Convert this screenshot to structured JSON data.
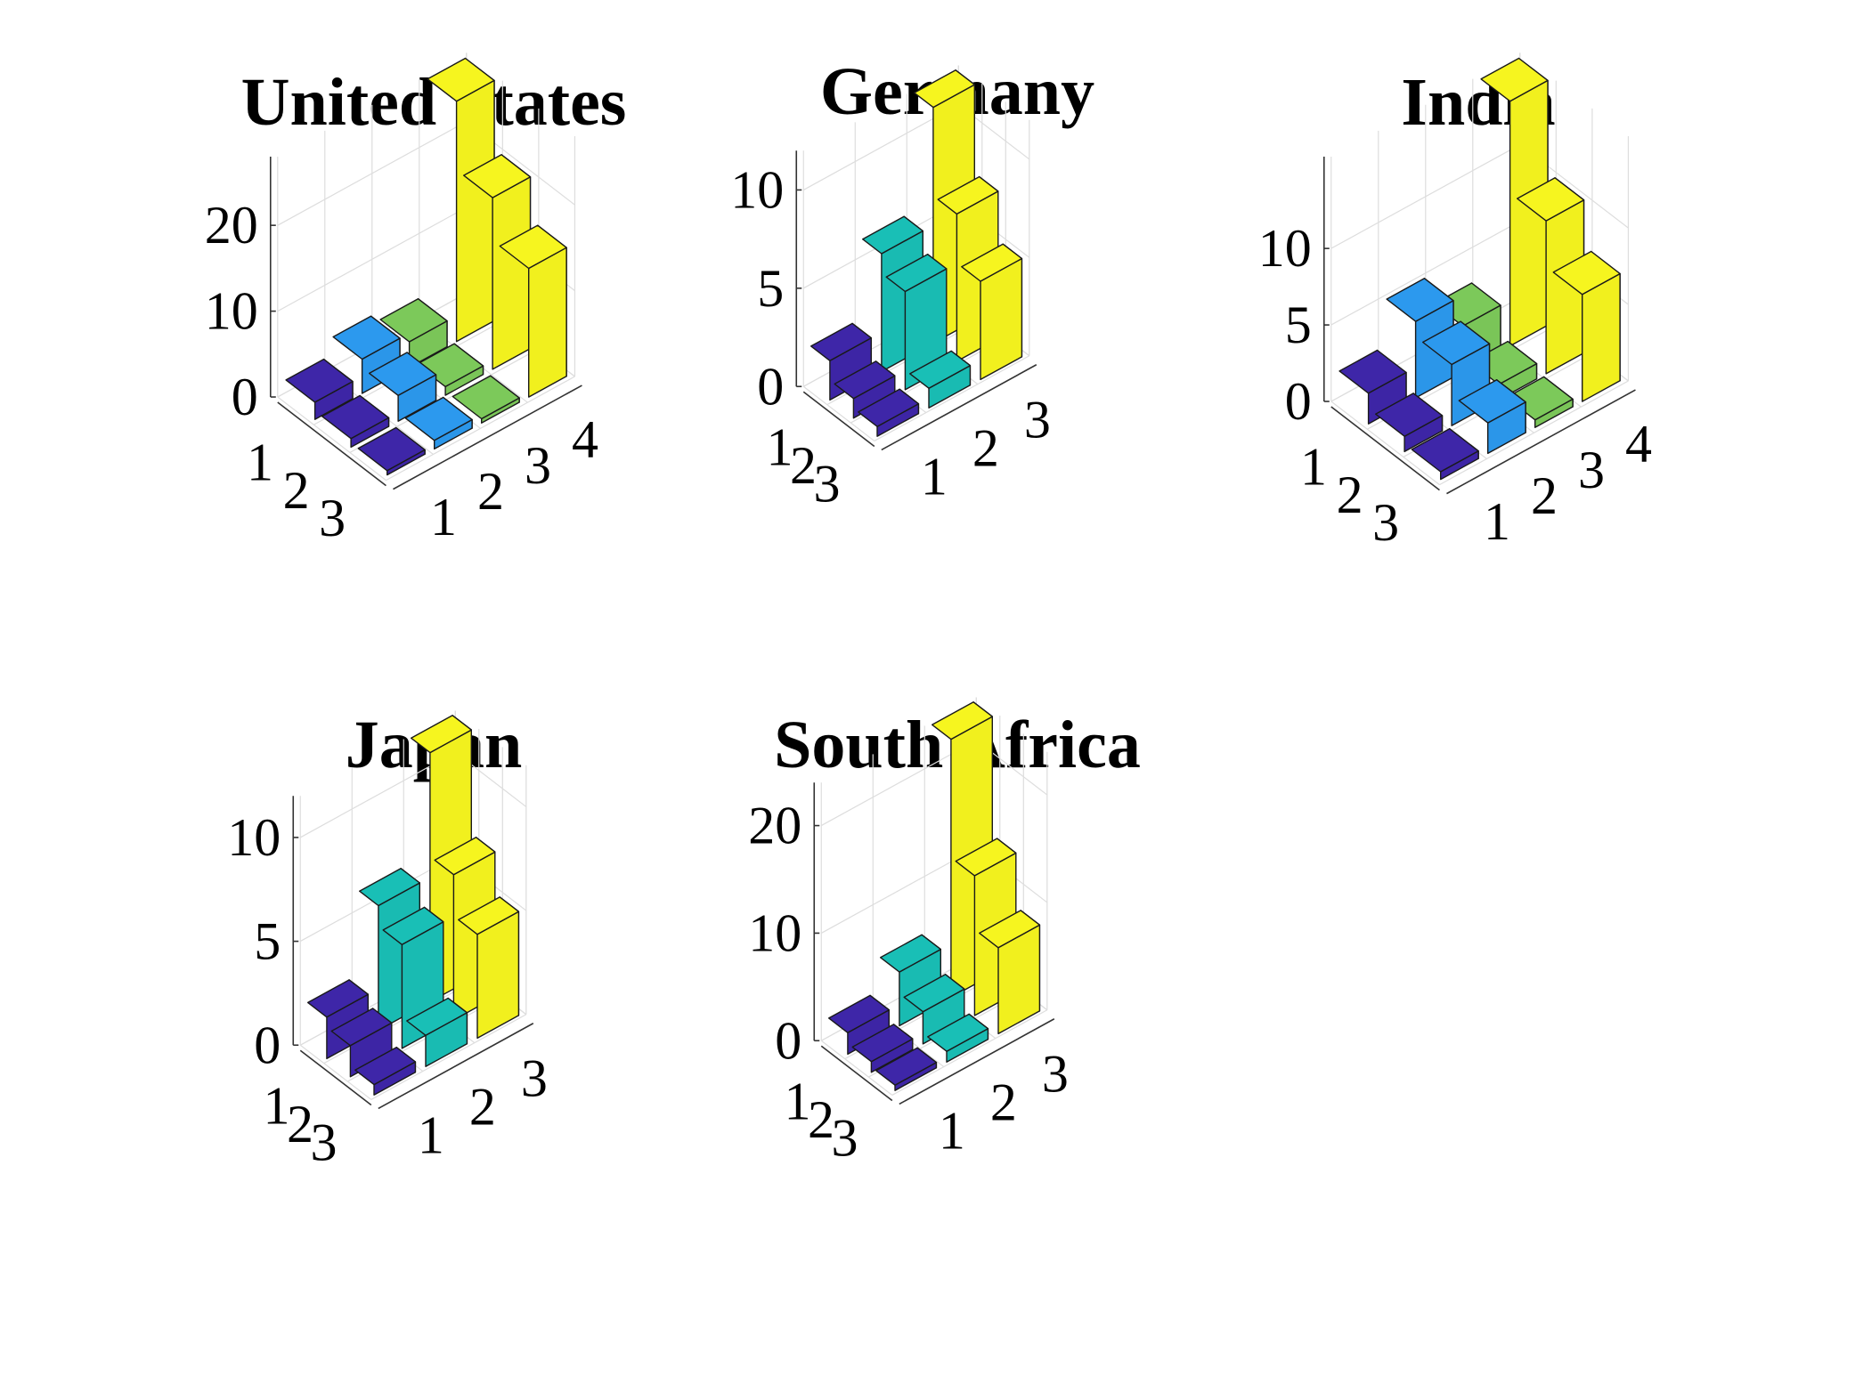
{
  "figure": {
    "panels": [
      {
        "title": "United States"
      },
      {
        "title": "Germany"
      },
      {
        "title": "India"
      },
      {
        "title": "Japan"
      },
      {
        "title": "South Africa"
      }
    ]
  },
  "colors": {
    "level_1": "#3e26a8",
    "level_2": "#2c99ee",
    "level_2_teal": "#19bfb6",
    "level_3": "#7cc95a",
    "level_4": "#f6f51f",
    "edge": "#1a1a1a",
    "grid": "#dddddd"
  },
  "chart_data": [
    {
      "type": "bar3",
      "title": "United States",
      "x_ticks": [
        "1",
        "2",
        "3",
        "4"
      ],
      "y_ticks": [
        "1",
        "2",
        "3"
      ],
      "z_ticks": [
        "0",
        "10",
        "20"
      ],
      "zlim": [
        0,
        28
      ],
      "bar_colors": [
        "#3e26a8",
        "#2c99ee",
        "#7cc95a",
        "#f6f51f"
      ],
      "grid": true,
      "values": [
        [
          2,
          4,
          3,
          28
        ],
        [
          1,
          3,
          1,
          20
        ],
        [
          0.5,
          1,
          0.5,
          15
        ]
      ]
    },
    {
      "type": "bar3",
      "title": "Germany",
      "x_ticks": [
        "1",
        "2",
        "3"
      ],
      "y_ticks": [
        "1",
        "2",
        "3"
      ],
      "z_ticks": [
        "0",
        "5",
        "10"
      ],
      "zlim": [
        0,
        12
      ],
      "bar_colors": [
        "#3e26a8",
        "#19bfb6",
        "#f6f51f"
      ],
      "grid": true,
      "values": [
        [
          2,
          6,
          12
        ],
        [
          1,
          5,
          7.5
        ],
        [
          0.5,
          1,
          5
        ]
      ]
    },
    {
      "type": "bar3",
      "title": "India",
      "x_ticks": [
        "1",
        "2",
        "3",
        "4"
      ],
      "y_ticks": [
        "1",
        "2",
        "3"
      ],
      "z_ticks": [
        "0",
        "5",
        "10"
      ],
      "zlim": [
        0,
        16
      ],
      "bar_colors": [
        "#3e26a8",
        "#2c99ee",
        "#7cc95a",
        "#f6f51f"
      ],
      "grid": true,
      "values": [
        [
          2,
          5,
          3,
          16
        ],
        [
          1,
          4,
          1,
          10
        ],
        [
          0.5,
          2,
          0.5,
          7
        ]
      ]
    },
    {
      "type": "bar3",
      "title": "Japan",
      "x_ticks": [
        "1",
        "2",
        "3"
      ],
      "y_ticks": [
        "1",
        "2",
        "3"
      ],
      "z_ticks": [
        "0",
        "5",
        "10"
      ],
      "zlim": [
        0,
        12
      ],
      "bar_colors": [
        "#3e26a8",
        "#19bfb6",
        "#f6f51f"
      ],
      "grid": true,
      "values": [
        [
          2,
          6,
          12
        ],
        [
          1.5,
          5,
          7
        ],
        [
          0.5,
          1.5,
          5
        ]
      ]
    },
    {
      "type": "bar3",
      "title": "South Africa",
      "x_ticks": [
        "1",
        "2",
        "3"
      ],
      "y_ticks": [
        "1",
        "2",
        "3"
      ],
      "z_ticks": [
        "0",
        "10",
        "20"
      ],
      "zlim": [
        0,
        24
      ],
      "bar_colors": [
        "#3e26a8",
        "#19bfb6",
        "#f6f51f"
      ],
      "grid": true,
      "values": [
        [
          2,
          5,
          24
        ],
        [
          1,
          3,
          13
        ],
        [
          0.5,
          1,
          8
        ]
      ]
    }
  ]
}
